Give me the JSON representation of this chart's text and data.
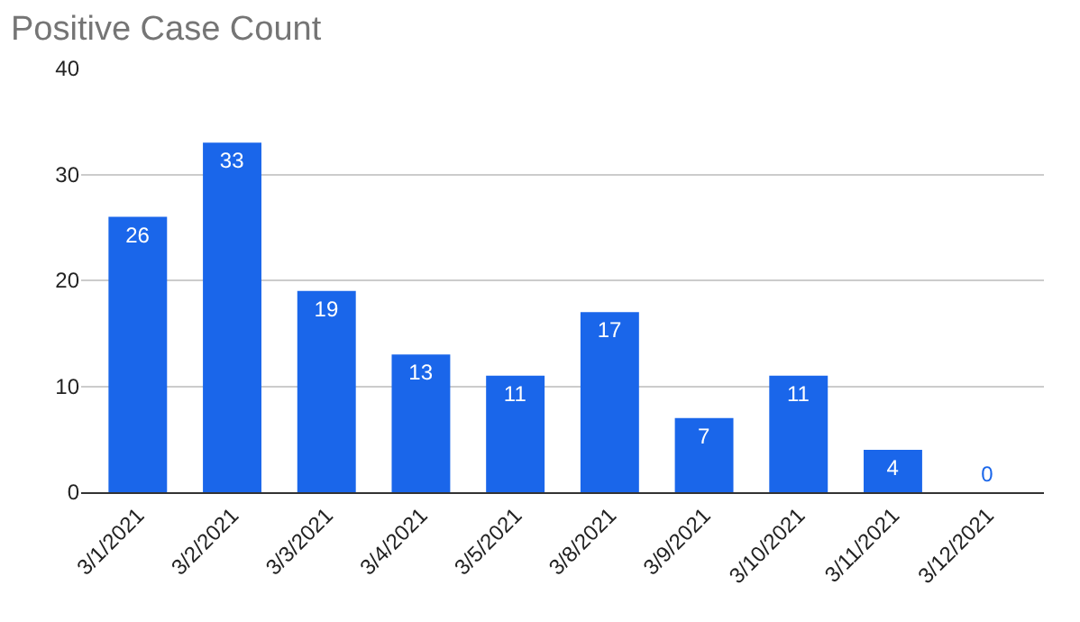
{
  "chart_data": {
    "type": "bar",
    "title": "Positive Case Count",
    "categories": [
      "3/1/2021",
      "3/2/2021",
      "3/3/2021",
      "3/4/2021",
      "3/5/2021",
      "3/8/2021",
      "3/9/2021",
      "3/10/2021",
      "3/11/2021",
      "3/12/2021"
    ],
    "values": [
      26,
      33,
      19,
      13,
      11,
      17,
      7,
      11,
      4,
      0
    ],
    "color": "#1a66ea",
    "ylim": [
      0,
      40
    ],
    "yticks": [
      0,
      10,
      20,
      30,
      40
    ],
    "grid": "y",
    "data_labels": true,
    "legend": false
  }
}
